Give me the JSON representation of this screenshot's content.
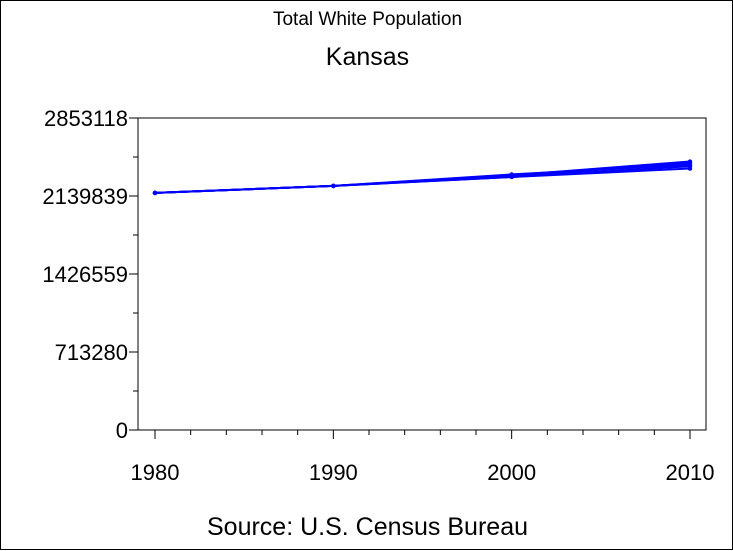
{
  "chart_data": {
    "type": "line",
    "title": "Total White Population",
    "subtitle": "Kansas",
    "footnote": "Source: U.S. Census Bureau",
    "xlabel": "",
    "ylabel": "",
    "x_ticks": [
      "1980",
      "1990",
      "2000",
      "2010"
    ],
    "y_ticks": [
      "0",
      "713280",
      "1426559",
      "2139839",
      "2853118"
    ],
    "xlim": [
      1980,
      2010
    ],
    "ylim": [
      0,
      2853118
    ],
    "grid": false,
    "line_color": "#0000ff",
    "series": [
      {
        "x": [
          1980,
          1990,
          2000,
          2010
        ],
        "y": [
          2168000,
          2232000,
          2314000,
          2391000
        ]
      },
      {
        "x": [
          1980,
          1990,
          2000,
          2010
        ],
        "y": [
          2168000,
          2232000,
          2314000,
          2411000
        ]
      },
      {
        "x": [
          1980,
          1990,
          2000,
          2010
        ],
        "y": [
          2168000,
          2232000,
          2337000,
          2425000
        ]
      },
      {
        "x": [
          1980,
          1990,
          2000,
          2010
        ],
        "y": [
          2168000,
          2232000,
          2323000,
          2440000
        ]
      },
      {
        "x": [
          1980,
          1990,
          2000,
          2010
        ],
        "y": [
          2168000,
          2232000,
          2330000,
          2455000
        ]
      }
    ]
  }
}
